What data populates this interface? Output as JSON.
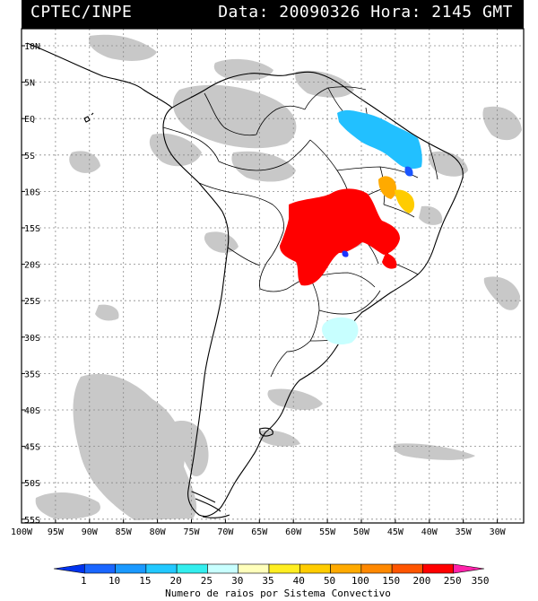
{
  "header": {
    "source": "CPTEC/INPE",
    "datetime": "Data: 20090326 Hora: 2145 GMT"
  },
  "map": {
    "lat_labels": [
      "10N",
      "5N",
      "EQ",
      "5S",
      "10S",
      "15S",
      "20S",
      "25S",
      "30S",
      "35S",
      "40S",
      "45S",
      "50S",
      "55S"
    ],
    "lon_labels": [
      "100W",
      "95W",
      "90W",
      "85W",
      "80W",
      "75W",
      "70W",
      "65W",
      "60W",
      "55W",
      "50W",
      "45W",
      "40W",
      "35W",
      "30W"
    ],
    "colors": {
      "cloud": "#c8c8c8",
      "coastline": "#000000",
      "grid": "#8a8a8a"
    }
  },
  "legend": {
    "values": [
      "1",
      "10",
      "15",
      "20",
      "25",
      "30",
      "35",
      "40",
      "50",
      "100",
      "150",
      "200",
      "250",
      "350"
    ],
    "colors": [
      "#0033ee",
      "#1a66ff",
      "#1a99ff",
      "#22c8ff",
      "#33eeee",
      "#c8ffff",
      "#ffffbb",
      "#ffee22",
      "#ffcc00",
      "#ffaa00",
      "#ff8800",
      "#ff5500",
      "#ff0000",
      "#ff22aa"
    ],
    "caption": "Numero de raios por Sistema Convectivo"
  }
}
